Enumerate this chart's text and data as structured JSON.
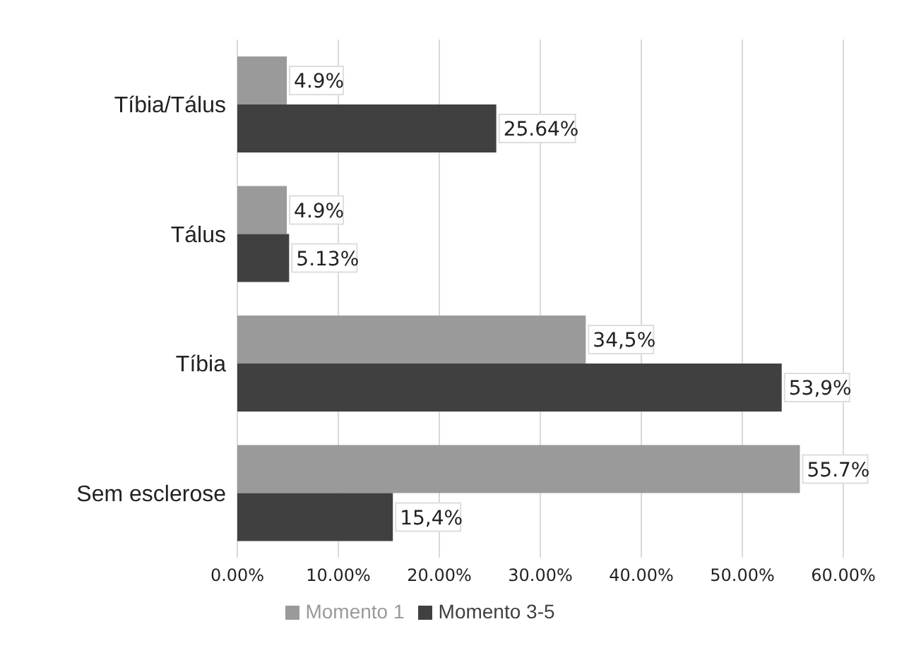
{
  "chart_data": {
    "type": "bar",
    "orientation": "horizontal",
    "categories": [
      "Tíbia/Tálus",
      "Tálus",
      "Tíbia",
      "Sem esclerose"
    ],
    "series": [
      {
        "name": "Momento 1",
        "color": "#9a9a9a",
        "values": [
          4.9,
          4.9,
          34.5,
          55.7
        ],
        "value_labels": [
          "4.9%",
          "4.9%",
          "34,5%",
          "55.7%"
        ]
      },
      {
        "name": "Momento 3-5",
        "color": "#404040",
        "values": [
          25.64,
          5.13,
          53.9,
          15.4
        ],
        "value_labels": [
          "25.64%",
          "5.13%",
          "53,9%",
          "15,4%"
        ]
      }
    ],
    "xlim": [
      0,
      60
    ],
    "xticks": [
      {
        "value": 0,
        "label": "0.00%"
      },
      {
        "value": 10,
        "label": "10.00%"
      },
      {
        "value": 20,
        "label": "20.00%"
      },
      {
        "value": 30,
        "label": "30.00%"
      },
      {
        "value": 40,
        "label": "40.00%"
      },
      {
        "value": 50,
        "label": "50.00%"
      },
      {
        "value": 60,
        "label": "60.00%"
      }
    ],
    "grid": "x",
    "legend": "bottom"
  }
}
